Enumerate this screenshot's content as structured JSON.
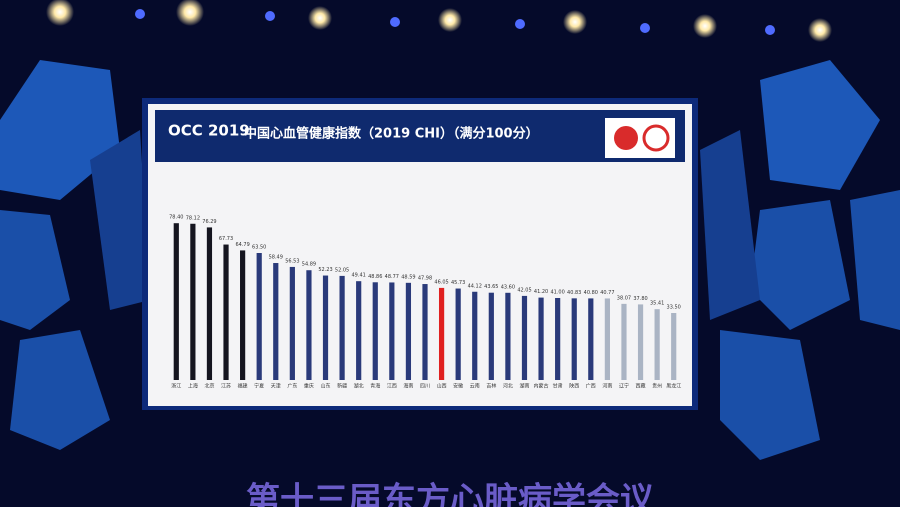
{
  "header": {
    "logo": "OCC 2019",
    "title": "中国心血管健康指数（2019 CHI）（满分100分）"
  },
  "chart_data": {
    "type": "bar",
    "categories": [
      "浙江",
      "上海",
      "北京",
      "江苏",
      "福建",
      "宁夏",
      "天津",
      "广东",
      "重庆",
      "山东",
      "新疆",
      "湖北",
      "青海",
      "江西",
      "海南",
      "四川",
      "山西",
      "安徽",
      "云南",
      "吉林",
      "河北",
      "湖南",
      "内蒙古",
      "甘肃",
      "陕西",
      "广西",
      "河南",
      "辽宁",
      "西藏",
      "贵州",
      "黑龙江"
    ],
    "values": [
      78.4,
      78.12,
      76.29,
      67.73,
      64.79,
      63.5,
      58.49,
      56.53,
      54.89,
      52.23,
      52.05,
      49.41,
      48.86,
      48.77,
      48.59,
      47.98,
      46.05,
      45.73,
      44.12,
      43.65,
      43.6,
      42.05,
      41.2,
      41,
      40.83,
      40.8,
      40.77,
      38.07,
      37.8,
      35.41,
      33.5
    ],
    "value_labels": [
      "78.40",
      "78.12",
      "76.29",
      "67.73",
      "64.79",
      "63.50",
      "58.49",
      "56.53",
      "54.89",
      "52.23",
      "52.05",
      "49.41",
      "48.86",
      "48.77",
      "48.59",
      "47.98",
      "46.05",
      "45.73",
      "44.12",
      "43.65",
      "43.60",
      "42.05",
      "41.20",
      "41.00",
      "40.83",
      "40.80",
      "40.77",
      "38.07",
      "37.80",
      "35.41",
      "33.50"
    ],
    "colors": [
      "#15151f",
      "#15151f",
      "#15151f",
      "#15151f",
      "#15151f",
      "#2a3a7a",
      "#2a3a7a",
      "#2a3a7a",
      "#2a3a7a",
      "#2a3a7a",
      "#2a3a7a",
      "#2a3a7a",
      "#2a3a7a",
      "#2a3a7a",
      "#2a3a7a",
      "#2a3a7a",
      "#e02020",
      "#2a3a7a",
      "#2a3a7a",
      "#2a3a7a",
      "#2a3a7a",
      "#2a3a7a",
      "#2a3a7a",
      "#2a3a7a",
      "#2a3a7a",
      "#2a3a7a",
      "#aab4c4",
      "#aab4c4",
      "#aab4c4",
      "#aab4c4",
      "#aab4c4"
    ]
  },
  "banner": "第十三届东方心脏病学会议"
}
